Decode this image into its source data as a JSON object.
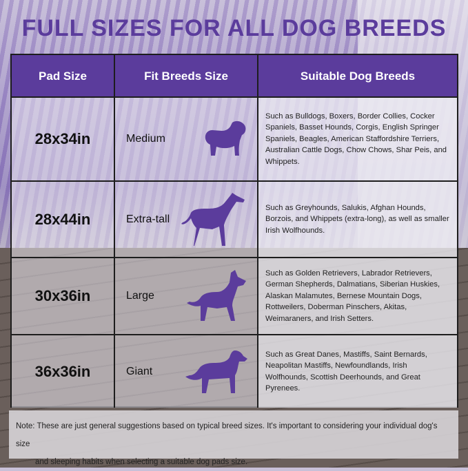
{
  "title": "FULL SIZES FOR ALL DOG BREEDS",
  "headers": [
    "Pad Size",
    "Fit Breeds Size",
    "Suitable Dog Breeds"
  ],
  "accent_color": "#5b3c9c",
  "rows": [
    {
      "size": "28x34in",
      "fit": "Medium",
      "icon": "pug-silhouette-icon",
      "breeds": "Such as Bulldogs, Boxers, Border Collies, Cocker Spaniels, Basset Hounds, Corgis, English Springer Spaniels, Beagles, American Staffordshire Terriers, Australian Cattle Dogs, Chow Chows, Shar Peis, and Whippets."
    },
    {
      "size": "28x44in",
      "fit": "Extra-tall",
      "icon": "greyhound-silhouette-icon",
      "breeds": "Such as Greyhounds, Salukis, Afghan Hounds, Borzois, and Whippets (extra-long), as well as smaller Irish Wolfhounds."
    },
    {
      "size": "30x36in",
      "fit": "Large",
      "icon": "shepherd-silhouette-icon",
      "breeds": "Such as Golden Retrievers, Labrador Retrievers, German Shepherds, Dalmatians, Siberian Huskies, Alaskan Malamutes, Bernese Mountain Dogs, Rottweilers, Doberman Pinschers, Akitas, Weimaraners, and Irish Setters."
    },
    {
      "size": "36x36in",
      "fit": "Giant",
      "icon": "retriever-silhouette-icon",
      "breeds": "Such as Great Danes, Mastiffs, Saint Bernards, Neapolitan Mastiffs, Newfoundlands, Irish  Wolfhounds, Scottish Deerhounds, and Great Pyrenees."
    }
  ],
  "note_line1": "Note: These are just general suggestions based on typical breed sizes. It's important to considering your individual dog's size",
  "note_line2": "and sleeping habits when selecting a suitable dog pads size."
}
